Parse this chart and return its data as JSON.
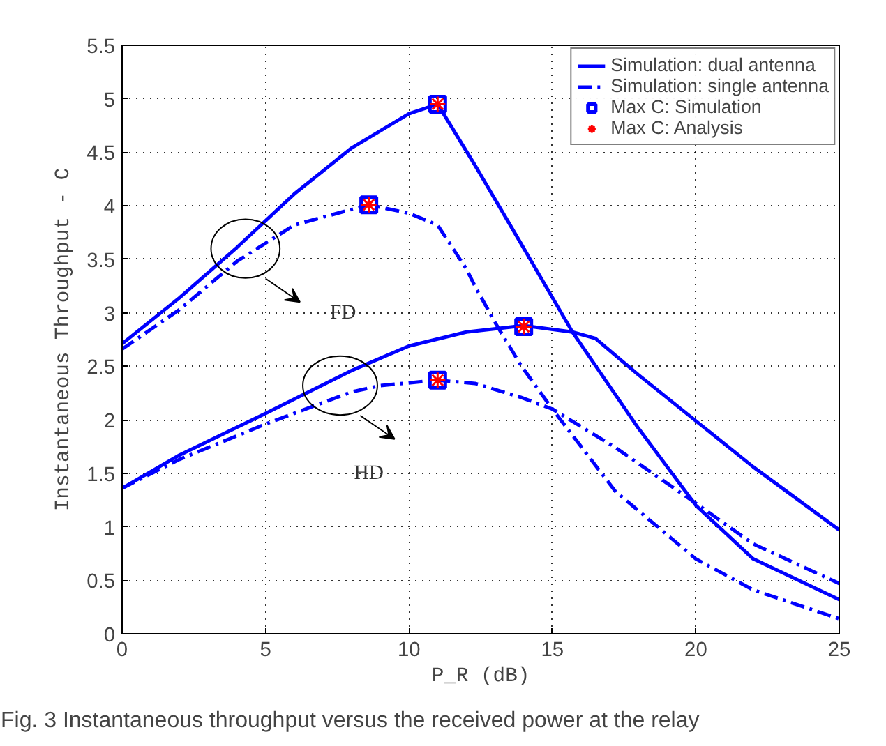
{
  "chart_data": {
    "type": "line",
    "xlabel": "P_R (dB)",
    "ylabel": "Instantaneous Throughput - C",
    "xlim": [
      0,
      25
    ],
    "ylim": [
      0,
      5.5
    ],
    "xticks": [
      0,
      5,
      10,
      15,
      20,
      25
    ],
    "yticks": [
      0,
      0.5,
      1,
      1.5,
      2,
      2.5,
      3,
      3.5,
      4,
      4.5,
      5,
      5.5
    ],
    "grid": true,
    "legend": "top right",
    "series": [
      {
        "name": "Simulation: dual antenna",
        "color": "#0000ff",
        "line_style": "solid",
        "x": [
          0,
          2,
          4,
          6,
          8,
          10,
          11,
          12.3,
          13.9,
          15.7,
          18,
          20,
          22,
          25
        ],
        "values": [
          2.71,
          3.14,
          3.61,
          4.11,
          4.54,
          4.86,
          4.95,
          4.38,
          3.65,
          2.82,
          1.92,
          1.2,
          0.7,
          0.32
        ]
      },
      {
        "name": "Simulation: single antenna",
        "color": "#0000ff",
        "line_style": "dashdot",
        "x": [
          0,
          2,
          4,
          6,
          8.6,
          10,
          11,
          12,
          12.3,
          13,
          13.9,
          15,
          17.2,
          20,
          22,
          25
        ],
        "values": [
          2.66,
          3.03,
          3.48,
          3.82,
          4.01,
          3.93,
          3.82,
          3.41,
          3.25,
          2.91,
          2.51,
          2.1,
          1.33,
          0.7,
          0.41,
          0.14
        ]
      },
      {
        "color": "#0000ff",
        "line_style": "solid",
        "x": [
          0,
          2,
          5,
          8,
          10,
          12,
          14,
          15.7,
          16.5,
          18,
          20,
          22,
          25
        ],
        "values": [
          1.36,
          1.67,
          2.06,
          2.46,
          2.69,
          2.82,
          2.88,
          2.82,
          2.76,
          2.42,
          1.99,
          1.56,
          0.97
        ]
      },
      {
        "color": "#0000ff",
        "line_style": "dashdot",
        "x": [
          0,
          2,
          5,
          8,
          9,
          11,
          12.3,
          13.9,
          15,
          17.2,
          20,
          22,
          25
        ],
        "values": [
          1.36,
          1.63,
          1.96,
          2.26,
          2.32,
          2.37,
          2.34,
          2.21,
          2.1,
          1.74,
          1.22,
          0.84,
          0.47
        ]
      },
      {
        "name": "Max C: Simulation",
        "type": "scatter",
        "marker": "square",
        "color": "#0000ff",
        "x": [
          11,
          8.6,
          14,
          11
        ],
        "values": [
          4.95,
          4.01,
          2.87,
          2.37
        ]
      },
      {
        "name": "Max C: Analysis",
        "type": "scatter",
        "marker": "cross",
        "color": "#ff0000",
        "x": [
          11,
          8.6,
          14,
          11
        ],
        "values": [
          4.95,
          4.01,
          2.87,
          2.37
        ]
      }
    ],
    "annotations": [
      "FD",
      "HD",
      "Fig. 3 Instantaneous throughput versus the received power at the relay"
    ]
  }
}
